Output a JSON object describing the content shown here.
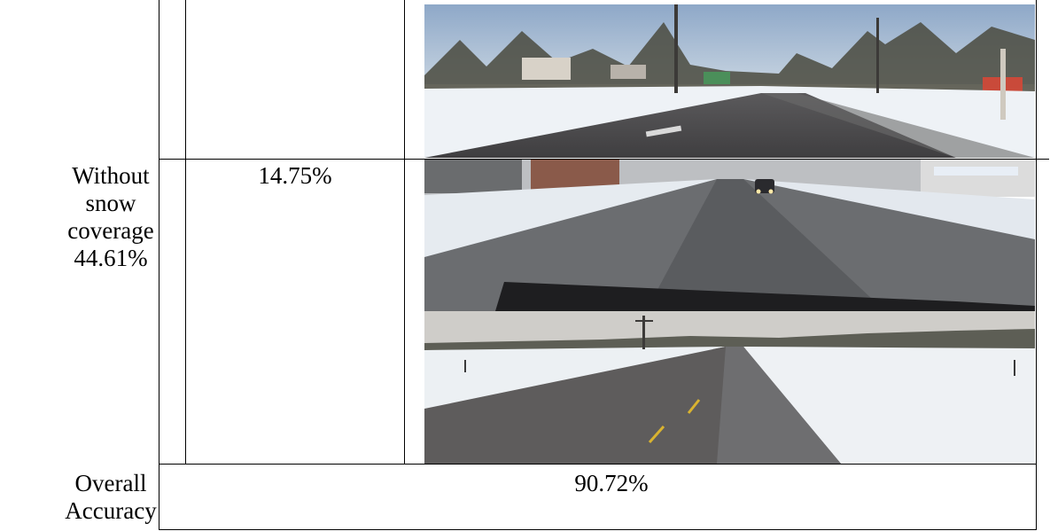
{
  "table": {
    "row2": {
      "category": [
        "Without",
        "snow",
        "coverage",
        "44.61%"
      ],
      "percentage": "14.75%"
    },
    "row3": {
      "label": [
        "Overall",
        "Accuracy"
      ],
      "value": "90.72%"
    }
  },
  "photos": [
    {
      "name": "road-photo-residential-snowbanks",
      "desc": "Snowy residential road with trees and houses"
    },
    {
      "name": "road-photo-town-slush",
      "desc": "Slushy town street with oncoming car"
    },
    {
      "name": "road-photo-rural-highway",
      "desc": "Rural two-lane highway with snowy fields"
    }
  ],
  "colors": {
    "sky_blue": "#9fb6cf",
    "snow": "#e9eef3",
    "asphalt": "#5a5a5c",
    "grey_sky": "#c9c8c6"
  }
}
